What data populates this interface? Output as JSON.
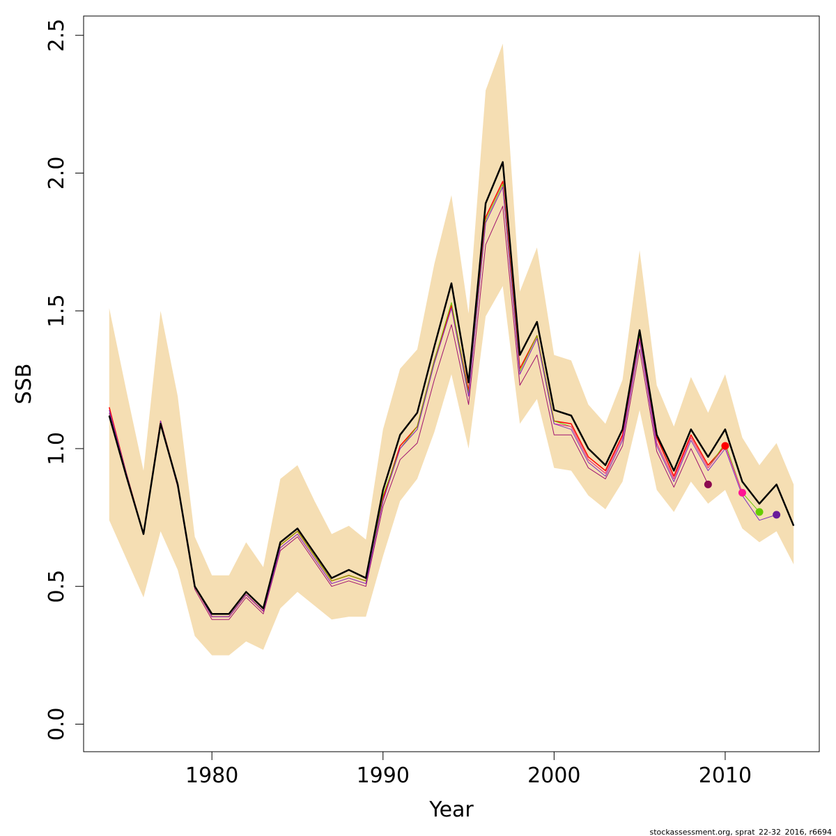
{
  "chart_data": {
    "type": "line",
    "xlabel": "Year",
    "ylabel": "SSB",
    "footer": "stockassessment.org, sprat_22-32_2016, r6694",
    "xlim": [
      1972.5,
      2015.5
    ],
    "ylim": [
      -0.1,
      2.57
    ],
    "x_ticks": [
      1980,
      1990,
      2000,
      2010
    ],
    "x_tick_labels": [
      "1980",
      "1990",
      "2000",
      "2010"
    ],
    "y_ticks": [
      0.0,
      0.5,
      1.0,
      1.5,
      2.0,
      2.5
    ],
    "y_tick_labels": [
      "0.0",
      "0.5",
      "1.0",
      "1.5",
      "2.0",
      "2.5"
    ],
    "grid": false,
    "band_color": "#F5DEB3",
    "years": [
      1974,
      1975,
      1976,
      1977,
      1978,
      1979,
      1980,
      1981,
      1982,
      1983,
      1984,
      1985,
      1986,
      1987,
      1988,
      1989,
      1990,
      1991,
      1992,
      1993,
      1994,
      1995,
      1996,
      1997,
      1998,
      1999,
      2000,
      2001,
      2002,
      2003,
      2004,
      2005,
      2006,
      2007,
      2008,
      2009,
      2010,
      2011,
      2012,
      2013,
      2014
    ],
    "band_upper": [
      1.51,
      1.21,
      0.92,
      1.5,
      1.19,
      0.68,
      0.54,
      0.54,
      0.66,
      0.57,
      0.89,
      0.94,
      0.81,
      0.69,
      0.72,
      0.67,
      1.07,
      1.29,
      1.36,
      1.67,
      1.92,
      1.49,
      2.3,
      2.47,
      1.57,
      1.73,
      1.34,
      1.32,
      1.16,
      1.09,
      1.25,
      1.72,
      1.23,
      1.08,
      1.26,
      1.13,
      1.27,
      1.04,
      0.94,
      1.02,
      0.87
    ],
    "band_lower": [
      0.74,
      0.6,
      0.46,
      0.7,
      0.56,
      0.32,
      0.25,
      0.25,
      0.3,
      0.27,
      0.42,
      0.48,
      0.43,
      0.38,
      0.39,
      0.39,
      0.61,
      0.81,
      0.89,
      1.06,
      1.27,
      1.0,
      1.48,
      1.59,
      1.09,
      1.18,
      0.93,
      0.92,
      0.83,
      0.78,
      0.88,
      1.14,
      0.85,
      0.77,
      0.88,
      0.8,
      0.85,
      0.71,
      0.66,
      0.7,
      0.58
    ],
    "series": [
      {
        "color": "#000000",
        "width": 2.5,
        "values": [
          1.12,
          0.9,
          0.69,
          1.09,
          0.87,
          0.5,
          0.4,
          0.4,
          0.48,
          0.42,
          0.66,
          0.71,
          0.62,
          0.53,
          0.56,
          0.53,
          0.85,
          1.05,
          1.13,
          1.37,
          1.6,
          1.24,
          1.89,
          2.04,
          1.34,
          1.46,
          1.14,
          1.12,
          1.0,
          0.94,
          1.07,
          1.43,
          1.05,
          0.92,
          1.07,
          0.97,
          1.07,
          0.88,
          0.8,
          0.87,
          0.72
        ]
      },
      {
        "color": "#FF0000",
        "width": 1.5,
        "values": [
          1.15,
          0.91,
          0.69,
          1.1,
          0.87,
          0.5,
          0.39,
          0.39,
          0.47,
          0.41,
          0.65,
          0.7,
          0.61,
          0.52,
          0.54,
          0.52,
          0.82,
          1.01,
          1.08,
          1.32,
          1.52,
          1.21,
          1.84,
          1.97,
          1.29,
          1.41,
          1.1,
          1.09,
          0.97,
          0.92,
          1.05,
          1.42,
          1.04,
          0.9,
          1.05,
          0.94,
          1.01
        ]
      },
      {
        "color": "#66CC00",
        "width": 1.0,
        "values": [
          1.14,
          0.91,
          0.69,
          1.1,
          0.87,
          0.5,
          0.39,
          0.39,
          0.47,
          0.41,
          0.65,
          0.7,
          0.61,
          0.52,
          0.54,
          0.52,
          0.83,
          1.0,
          1.08,
          1.32,
          1.53,
          1.2,
          1.83,
          1.96,
          1.28,
          1.41,
          1.1,
          1.08,
          0.96,
          0.91,
          1.04,
          1.41,
          1.02,
          0.89,
          1.04,
          0.93,
          1.02,
          0.84,
          0.77
        ]
      },
      {
        "color": "#FF1493",
        "width": 1.0,
        "values": [
          1.14,
          0.91,
          0.69,
          1.1,
          0.87,
          0.5,
          0.39,
          0.39,
          0.47,
          0.41,
          0.64,
          0.69,
          0.6,
          0.51,
          0.53,
          0.51,
          0.81,
          1.0,
          1.07,
          1.31,
          1.51,
          1.19,
          1.82,
          1.95,
          1.27,
          1.4,
          1.09,
          1.08,
          0.96,
          0.91,
          1.04,
          1.4,
          1.02,
          0.89,
          1.04,
          0.93,
          1.01,
          0.84
        ]
      },
      {
        "color": "#7B2FBE",
        "width": 1.0,
        "values": [
          1.14,
          0.91,
          0.69,
          1.1,
          0.87,
          0.5,
          0.39,
          0.39,
          0.47,
          0.41,
          0.64,
          0.69,
          0.6,
          0.51,
          0.53,
          0.51,
          0.81,
          1.0,
          1.07,
          1.31,
          1.51,
          1.19,
          1.82,
          1.95,
          1.27,
          1.4,
          1.09,
          1.07,
          0.95,
          0.9,
          1.03,
          1.39,
          1.01,
          0.88,
          1.03,
          0.92,
          1.0,
          0.83,
          0.74,
          0.76
        ]
      },
      {
        "color": "#A0126E",
        "width": 1.0,
        "values": [
          1.13,
          0.9,
          0.69,
          1.09,
          0.86,
          0.49,
          0.38,
          0.38,
          0.46,
          0.4,
          0.63,
          0.68,
          0.59,
          0.5,
          0.52,
          0.5,
          0.79,
          0.96,
          1.02,
          1.25,
          1.45,
          1.16,
          1.74,
          1.88,
          1.23,
          1.34,
          1.05,
          1.05,
          0.93,
          0.89,
          1.01,
          1.36,
          0.99,
          0.86,
          1.0,
          0.87
        ]
      }
    ],
    "endpoints": [
      {
        "year": 2009,
        "value": 0.87,
        "color": "#8B0A50"
      },
      {
        "year": 2010,
        "value": 1.01,
        "color": "#FF0000"
      },
      {
        "year": 2011,
        "value": 0.84,
        "color": "#FF1493"
      },
      {
        "year": 2012,
        "value": 0.77,
        "color": "#66CC00"
      },
      {
        "year": 2013,
        "value": 0.76,
        "color": "#6A1B9A"
      }
    ]
  }
}
